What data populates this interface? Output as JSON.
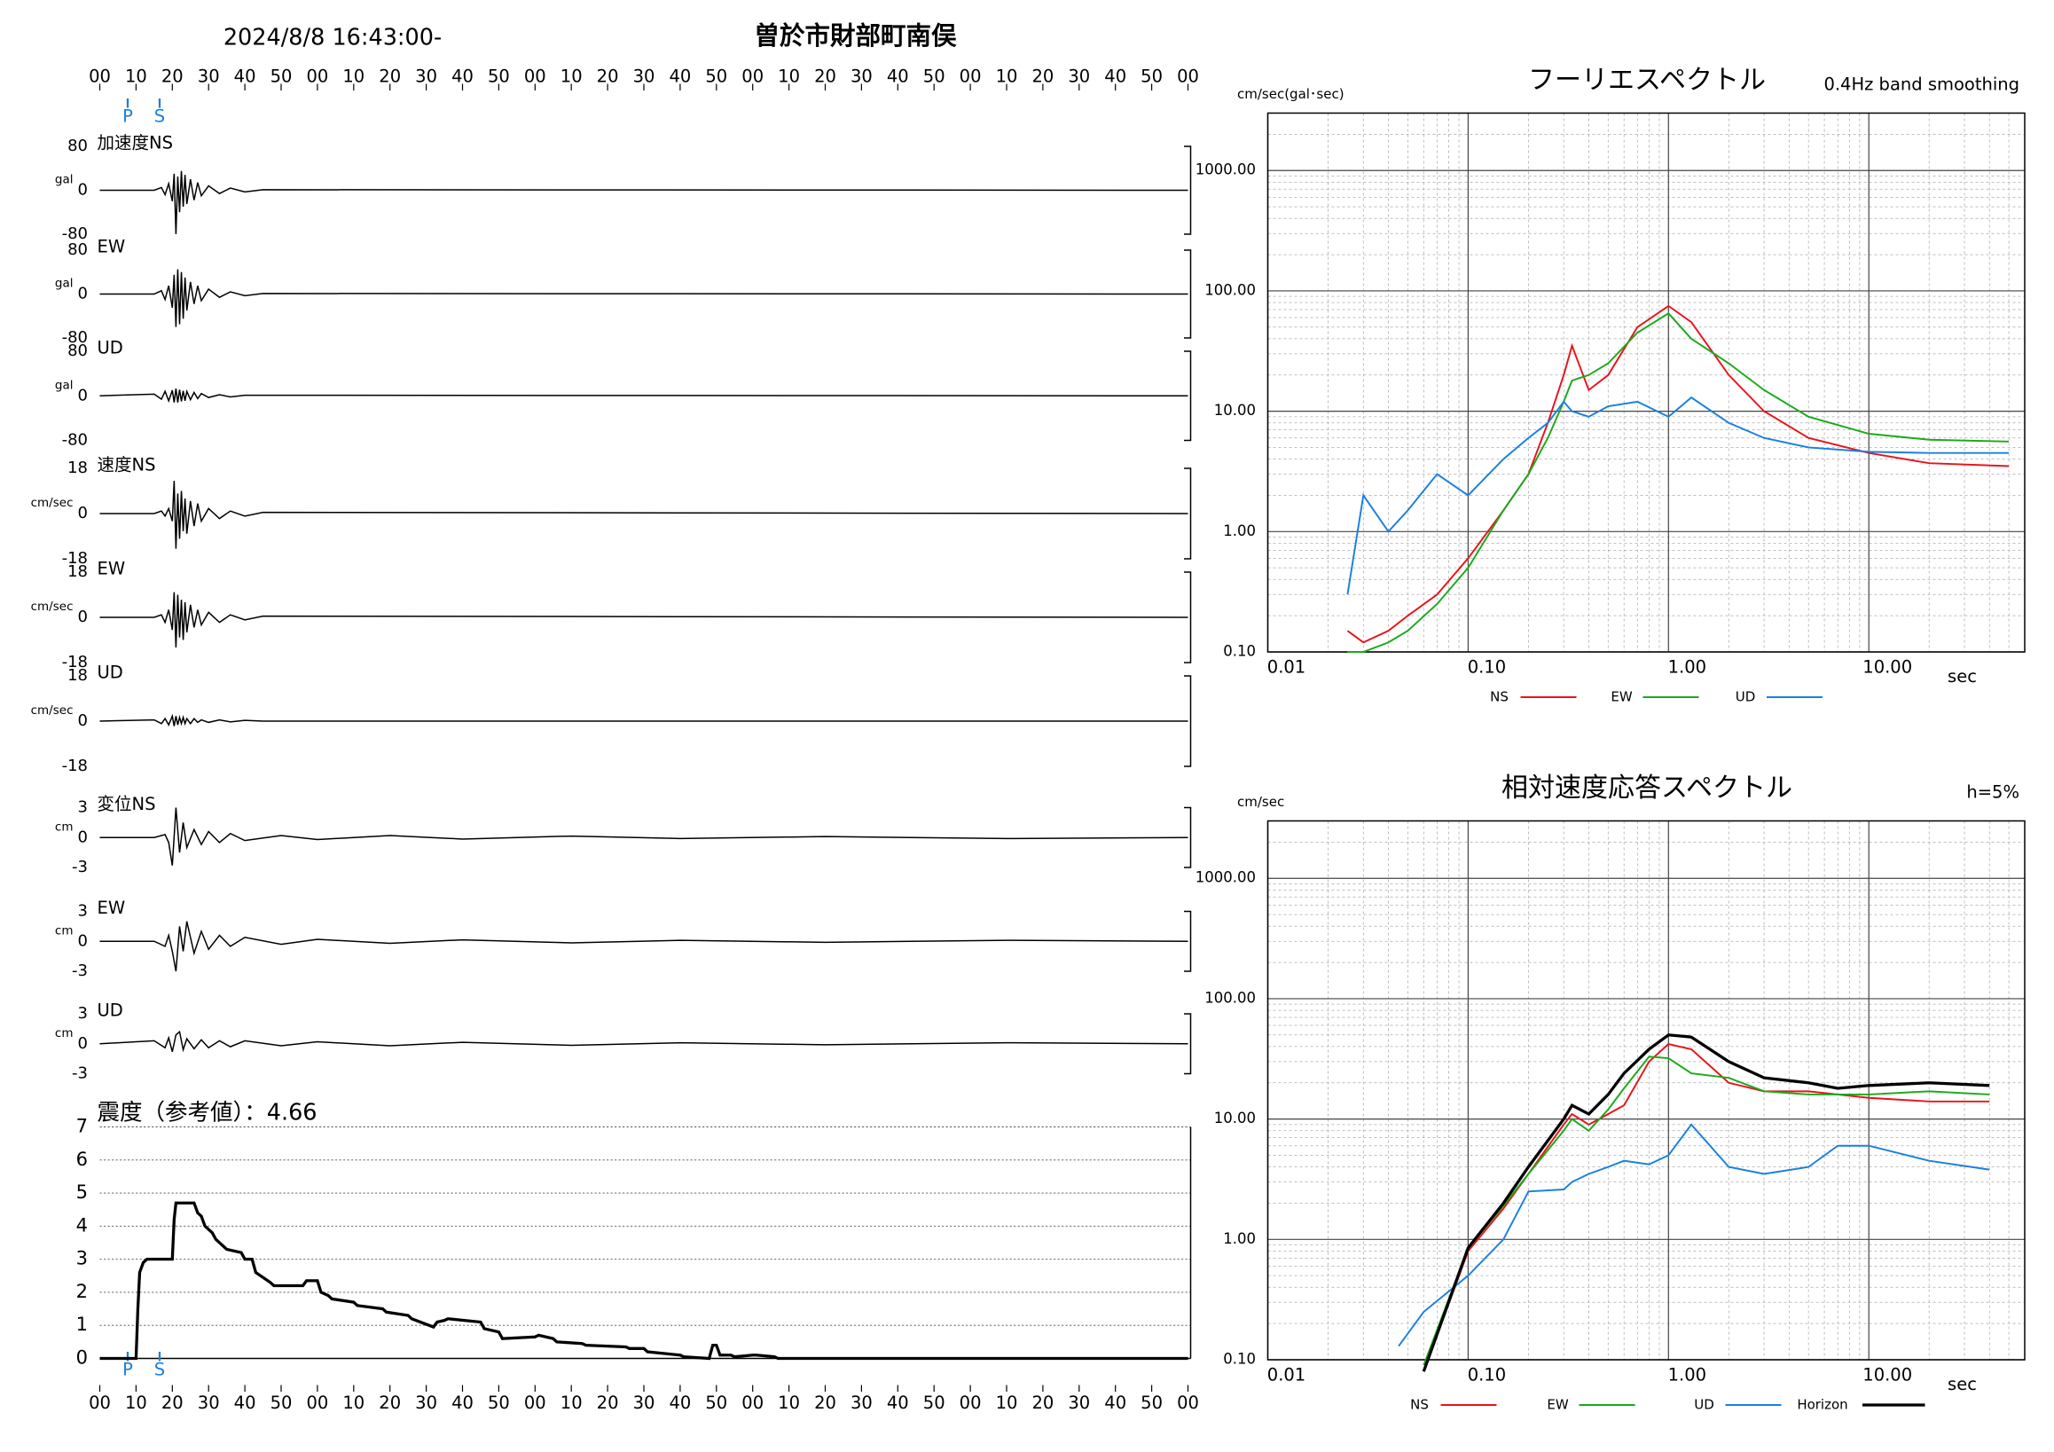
{
  "header": {
    "datetime": "2024/8/8 16:43:00-",
    "station": "曽於市財部町南俣"
  },
  "chart_data": [
    {
      "type": "line",
      "title": "加速度NS",
      "y_label": "gal",
      "color": "#000000",
      "xlim": [
        0,
        300
      ],
      "xticks": [
        {
          "value": 0,
          "label": "00"
        },
        10,
        20,
        30,
        40,
        50,
        {
          "value": 60,
          "label": "00"
        },
        {
          "value": 70,
          "label": "10"
        },
        {
          "value": 80,
          "label": "20"
        },
        {
          "value": 90,
          "label": "30"
        },
        {
          "value": 100,
          "label": "40"
        },
        {
          "value": 110,
          "label": "50"
        },
        {
          "value": 120,
          "label": "00"
        },
        {
          "value": 130,
          "label": "10"
        },
        {
          "value": 140,
          "label": "20"
        },
        {
          "value": 150,
          "label": "30"
        },
        {
          "value": 160,
          "label": "40"
        },
        {
          "value": 170,
          "label": "50"
        },
        {
          "value": 180,
          "label": "00"
        },
        {
          "value": 190,
          "label": "10"
        },
        {
          "value": 200,
          "label": "20"
        },
        {
          "value": 210,
          "label": "30"
        },
        {
          "value": 220,
          "label": "40"
        },
        {
          "value": 230,
          "label": "50"
        },
        {
          "value": 240,
          "label": "00"
        },
        {
          "value": 250,
          "label": "10"
        },
        {
          "value": 260,
          "label": "20"
        },
        {
          "value": 270,
          "label": "30"
        },
        {
          "value": 280,
          "label": "40"
        },
        {
          "value": 290,
          "label": "50"
        },
        {
          "value": 300,
          "label": "00"
        }
      ],
      "phases": [
        {
          "label": "P",
          "x": 7.7
        },
        {
          "label": "S",
          "x": 16.5
        }
      ],
      "ylim": [
        -80,
        80
      ],
      "yticks": [
        -80,
        0,
        80
      ],
      "x": [
        0,
        15,
        17,
        18,
        19,
        20,
        20.5,
        21,
        21.5,
        22,
        22.5,
        23,
        23.5,
        24,
        25,
        26,
        27,
        28,
        30,
        33,
        36,
        40,
        45,
        300
      ],
      "values": [
        0,
        0,
        5,
        -8,
        12,
        -20,
        30,
        -80,
        25,
        -40,
        35,
        -30,
        28,
        -25,
        20,
        -18,
        14,
        -10,
        8,
        -6,
        4,
        -3,
        1,
        0
      ]
    },
    {
      "type": "line",
      "title": "EW",
      "y_label": "gal",
      "color": "#000000",
      "xlim": [
        0,
        300
      ],
      "ylim": [
        -80,
        80
      ],
      "yticks": [
        -80,
        0,
        80
      ],
      "x": [
        0,
        15,
        17,
        18,
        19,
        20,
        20.5,
        21,
        21.5,
        22,
        22.5,
        23,
        23.5,
        24,
        25,
        26,
        27,
        28,
        30,
        33,
        36,
        40,
        45,
        300
      ],
      "values": [
        0,
        0,
        6,
        -10,
        15,
        -25,
        35,
        -60,
        45,
        -55,
        40,
        -45,
        30,
        -30,
        22,
        -18,
        15,
        -12,
        9,
        -6,
        4,
        -3,
        1,
        0
      ]
    },
    {
      "type": "line",
      "title": "UD",
      "y_label": "gal",
      "color": "#000000",
      "xlim": [
        0,
        300
      ],
      "ylim": [
        -80,
        80
      ],
      "yticks": [
        -80,
        0,
        80
      ],
      "x": [
        0,
        15,
        17,
        18,
        19,
        20,
        20.5,
        21,
        21.5,
        22,
        22.5,
        23,
        23.5,
        24,
        25,
        26,
        27,
        28,
        30,
        33,
        36,
        40,
        45,
        300
      ],
      "values": [
        0,
        3,
        -6,
        8,
        -9,
        10,
        -12,
        13,
        -12,
        11,
        -10,
        9,
        -9,
        8,
        -7,
        6,
        -5,
        4,
        -3,
        2,
        -2,
        1,
        1,
        0
      ]
    },
    {
      "type": "line",
      "title": "速度NS",
      "y_label": "cm/sec",
      "color": "#000000",
      "xlim": [
        0,
        300
      ],
      "ylim": [
        -18,
        18
      ],
      "yticks": [
        -18,
        0,
        18
      ],
      "x": [
        0,
        15,
        17,
        18,
        19,
        20,
        20.5,
        21,
        21.5,
        22,
        22.5,
        23,
        23.5,
        24,
        25,
        26,
        27,
        28,
        30,
        33,
        36,
        40,
        45,
        300
      ],
      "values": [
        0,
        0,
        1,
        -1,
        2,
        -3,
        13,
        -14,
        8,
        -10,
        9,
        -7,
        6,
        -8,
        5,
        -5,
        4,
        -3,
        2,
        -2,
        1,
        -1,
        0.5,
        0
      ]
    },
    {
      "type": "line",
      "title": "EW",
      "y_label": "cm/sec",
      "color": "#000000",
      "xlim": [
        0,
        300
      ],
      "ylim": [
        -18,
        18
      ],
      "yticks": [
        -18,
        0,
        18
      ],
      "x": [
        0,
        15,
        17,
        18,
        19,
        20,
        20.5,
        21,
        21.5,
        22,
        22.5,
        23,
        23.5,
        24,
        25,
        26,
        27,
        28,
        30,
        33,
        36,
        40,
        45,
        300
      ],
      "values": [
        0,
        0,
        1,
        -2,
        3,
        -5,
        10,
        -12,
        9,
        -8,
        7,
        -9,
        6,
        -6,
        5,
        -4,
        3,
        -3,
        2,
        -2,
        1,
        -1,
        0.5,
        0
      ]
    },
    {
      "type": "line",
      "title": "UD",
      "y_label": "cm/sec",
      "color": "#000000",
      "xlim": [
        0,
        300
      ],
      "ylim": [
        -18,
        18
      ],
      "yticks": [
        -18,
        0,
        18
      ],
      "x": [
        0,
        15,
        17,
        18,
        19,
        20,
        20.5,
        21,
        21.5,
        22,
        22.5,
        23,
        23.5,
        24,
        25,
        26,
        27,
        28,
        30,
        33,
        36,
        40,
        45,
        300
      ],
      "values": [
        0,
        0.5,
        -1,
        1,
        -1.5,
        2,
        -2,
        2,
        -1.5,
        1.5,
        -1,
        1.5,
        -1,
        1,
        -1,
        1,
        -0.5,
        0.5,
        -0.5,
        0.5,
        -0.3,
        0.3,
        0,
        0
      ]
    },
    {
      "type": "line",
      "title": "変位NS",
      "y_label": "cm",
      "color": "#000000",
      "xlim": [
        0,
        300
      ],
      "ylim": [
        -3,
        3
      ],
      "yticks": [
        -3,
        0,
        3
      ],
      "x": [
        0,
        15,
        18,
        19,
        20,
        21,
        22,
        23,
        24,
        26,
        28,
        30,
        33,
        36,
        40,
        50,
        60,
        80,
        100,
        130,
        160,
        200,
        250,
        300
      ],
      "values": [
        0,
        0,
        0.3,
        -0.5,
        -2.8,
        3,
        -1.5,
        1.5,
        -1,
        0.8,
        -0.7,
        0.6,
        -0.5,
        0.4,
        -0.3,
        0.2,
        -0.2,
        0.2,
        -0.15,
        0.15,
        -0.1,
        0.1,
        -0.1,
        0
      ]
    },
    {
      "type": "line",
      "title": "EW",
      "y_label": "cm",
      "color": "#000000",
      "xlim": [
        0,
        300
      ],
      "ylim": [
        -3,
        3
      ],
      "yticks": [
        -3,
        0,
        3
      ],
      "x": [
        0,
        15,
        18,
        19,
        20,
        21,
        22,
        23,
        24,
        26,
        28,
        30,
        33,
        36,
        40,
        50,
        60,
        80,
        100,
        130,
        160,
        200,
        250,
        300
      ],
      "values": [
        0,
        0,
        -0.5,
        0.6,
        -1,
        -3,
        1.5,
        -1,
        2,
        -1.2,
        1,
        -0.8,
        0.6,
        -0.5,
        0.4,
        -0.3,
        0.2,
        -0.2,
        0.15,
        -0.15,
        0.1,
        -0.1,
        0.1,
        0
      ]
    },
    {
      "type": "line",
      "title": "UD",
      "y_label": "cm",
      "color": "#000000",
      "xlim": [
        0,
        300
      ],
      "ylim": [
        -3,
        3
      ],
      "yticks": [
        -3,
        0,
        3
      ],
      "x": [
        0,
        15,
        18,
        19,
        20,
        21,
        22,
        23,
        24,
        26,
        28,
        30,
        33,
        36,
        40,
        50,
        60,
        80,
        100,
        130,
        160,
        200,
        250,
        300
      ],
      "values": [
        0,
        0.3,
        -0.4,
        0.6,
        -0.8,
        0.9,
        1.2,
        -0.6,
        0.5,
        -0.5,
        0.4,
        -0.4,
        0.3,
        -0.3,
        0.3,
        -0.2,
        0.2,
        -0.2,
        0.15,
        -0.15,
        0.1,
        -0.1,
        0.1,
        0
      ]
    },
    {
      "type": "line",
      "title": "震度（参考値）：4.66",
      "color": "#000000",
      "grid": true,
      "xlim": [
        0,
        300
      ],
      "xticks": [
        {
          "value": 0,
          "label": "00"
        },
        10,
        20,
        30,
        40,
        50,
        {
          "value": 60,
          "label": "00"
        },
        {
          "value": 70,
          "label": "10"
        },
        {
          "value": 80,
          "label": "20"
        },
        {
          "value": 90,
          "label": "30"
        },
        {
          "value": 100,
          "label": "40"
        },
        {
          "value": 110,
          "label": "50"
        },
        {
          "value": 120,
          "label": "00"
        },
        {
          "value": 130,
          "label": "10"
        },
        {
          "value": 140,
          "label": "20"
        },
        {
          "value": 150,
          "label": "30"
        },
        {
          "value": 160,
          "label": "40"
        },
        {
          "value": 170,
          "label": "50"
        },
        {
          "value": 180,
          "label": "00"
        },
        {
          "value": 190,
          "label": "10"
        },
        {
          "value": 200,
          "label": "20"
        },
        {
          "value": 210,
          "label": "30"
        },
        {
          "value": 220,
          "label": "40"
        },
        {
          "value": 230,
          "label": "50"
        },
        {
          "value": 240,
          "label": "00"
        },
        {
          "value": 250,
          "label": "10"
        },
        {
          "value": 260,
          "label": "20"
        },
        {
          "value": 270,
          "label": "30"
        },
        {
          "value": 280,
          "label": "40"
        },
        {
          "value": 290,
          "label": "50"
        },
        {
          "value": 300,
          "label": "00"
        }
      ],
      "phases": [
        {
          "label": "P",
          "x": 7.7
        },
        {
          "label": "S",
          "x": 16.5
        }
      ],
      "ylim": [
        0,
        7
      ],
      "yticks": [
        0,
        1,
        2,
        3,
        4,
        5,
        6,
        7
      ],
      "x": [
        0,
        10,
        10.5,
        11,
        12,
        13,
        20,
        20.5,
        21,
        26,
        27,
        28,
        29,
        31,
        32,
        34,
        35,
        39,
        40,
        42,
        43,
        47,
        48,
        56,
        57,
        60,
        61,
        63,
        64,
        70,
        71,
        78,
        79,
        85,
        86,
        92,
        93,
        95,
        96,
        105,
        106,
        110,
        111,
        120,
        121,
        125,
        126,
        133,
        134,
        145,
        146,
        150,
        151,
        160,
        161,
        168,
        169,
        170,
        171,
        174,
        175,
        180,
        181,
        186,
        187,
        300
      ],
      "values": [
        0,
        0,
        1.5,
        2.6,
        2.9,
        3.0,
        3.0,
        4.2,
        4.7,
        4.7,
        4.4,
        4.3,
        4.0,
        3.8,
        3.6,
        3.4,
        3.3,
        3.2,
        3.0,
        3.0,
        2.6,
        2.3,
        2.2,
        2.2,
        2.35,
        2.35,
        2.0,
        1.9,
        1.8,
        1.7,
        1.6,
        1.5,
        1.4,
        1.3,
        1.2,
        0.95,
        1.1,
        1.15,
        1.2,
        1.1,
        0.9,
        0.8,
        0.6,
        0.65,
        0.7,
        0.6,
        0.5,
        0.45,
        0.4,
        0.35,
        0.3,
        0.3,
        0.2,
        0.1,
        0.05,
        0,
        0.4,
        0.4,
        0.1,
        0.1,
        0.05,
        0.1,
        0.1,
        0.05,
        0,
        0
      ]
    },
    {
      "type": "line",
      "xscale": "log",
      "yscale": "log",
      "title": "フーリエスペクトル",
      "subtitle": "0.4Hz band smoothing",
      "y_label": "cm/sec(gal･sec)",
      "x_label": "sec",
      "xlim": [
        0.01,
        60
      ],
      "ylim": [
        0.1,
        3000
      ],
      "xticks": [
        0.01,
        {
          "value": 0.1,
          "label": "0.10"
        },
        {
          "value": 1,
          "label": "1.00"
        },
        {
          "value": 10,
          "label": "10.00"
        }
      ],
      "yticks": [
        {
          "value": 0.1,
          "label": "0.10"
        },
        {
          "value": 1,
          "label": "1.00"
        },
        {
          "value": 10,
          "label": "10.00"
        },
        {
          "value": 100,
          "label": "100.00"
        },
        {
          "value": 1000,
          "label": "1000.00"
        }
      ],
      "x": [
        0.025,
        0.03,
        0.04,
        0.05,
        0.07,
        0.1,
        0.15,
        0.2,
        0.25,
        0.3,
        0.33,
        0.4,
        0.5,
        0.7,
        1.0,
        1.3,
        2,
        3,
        5,
        10,
        20,
        50
      ],
      "series": [
        {
          "name": "NS",
          "color": "#e8141a",
          "values": [
            0.15,
            0.12,
            0.15,
            0.2,
            0.3,
            0.6,
            1.5,
            3,
            8,
            20,
            35,
            15,
            20,
            50,
            75,
            55,
            20,
            10,
            6,
            4.5,
            3.7,
            3.5
          ]
        },
        {
          "name": "EW",
          "color": "#1aaa1a",
          "values": [
            0.1,
            0.1,
            0.12,
            0.15,
            0.25,
            0.5,
            1.5,
            3,
            6,
            12,
            18,
            20,
            25,
            45,
            65,
            40,
            25,
            15,
            9,
            6.5,
            5.8,
            5.6
          ]
        },
        {
          "name": "UD",
          "color": "#1a7fe0",
          "values": [
            0.3,
            2,
            1,
            1.5,
            3,
            2,
            4,
            6,
            8,
            12,
            10,
            9,
            11,
            12,
            9,
            13,
            8,
            6,
            5,
            4.6,
            4.5,
            4.5
          ]
        }
      ]
    },
    {
      "type": "line",
      "xscale": "log",
      "yscale": "log",
      "title": "相対速度応答スペクトル",
      "subtitle": "h=5%",
      "y_label": "cm/sec",
      "x_label": "sec",
      "xlim": [
        0.01,
        60
      ],
      "ylim": [
        0.1,
        3000
      ],
      "xticks": [
        0.01,
        {
          "value": 0.1,
          "label": "0.10"
        },
        {
          "value": 1,
          "label": "1.00"
        },
        {
          "value": 10,
          "label": "10.00"
        }
      ],
      "yticks": [
        {
          "value": 0.1,
          "label": "0.10"
        },
        {
          "value": 1,
          "label": "1.00"
        },
        {
          "value": 10,
          "label": "10.00"
        },
        {
          "value": 100,
          "label": "100.00"
        },
        {
          "value": 1000,
          "label": "1000.00"
        }
      ],
      "x": [
        0.045,
        0.06,
        0.1,
        0.15,
        0.2,
        0.3,
        0.33,
        0.4,
        0.5,
        0.6,
        0.8,
        1.0,
        1.3,
        2,
        3,
        5,
        7,
        10,
        20,
        40
      ],
      "series": [
        {
          "name": "NS",
          "color": "#e8141a",
          "values": [
            null,
            0.08,
            0.8,
            1.8,
            3.5,
            9,
            11,
            9,
            11,
            13,
            30,
            42,
            38,
            20,
            17,
            17,
            16,
            15,
            14,
            14
          ]
        },
        {
          "name": "EW",
          "color": "#1aaa1a",
          "values": [
            null,
            0.09,
            0.85,
            1.9,
            3.5,
            8,
            10,
            8,
            12,
            18,
            33,
            32,
            24,
            22,
            17,
            16,
            16,
            16,
            17,
            16
          ]
        },
        {
          "name": "UD",
          "color": "#1a7fe0",
          "values": [
            0.13,
            0.25,
            0.5,
            1,
            2.5,
            2.6,
            3,
            3.5,
            4,
            4.5,
            4.2,
            5,
            9,
            4,
            3.5,
            4,
            6,
            6,
            4.5,
            3.8
          ]
        },
        {
          "name": "Horizon",
          "color": "#000000",
          "values": [
            null,
            0.08,
            0.85,
            2,
            4,
            10,
            13,
            11,
            16,
            24,
            38,
            50,
            48,
            30,
            22,
            20,
            18,
            19,
            20,
            19
          ]
        }
      ]
    }
  ]
}
